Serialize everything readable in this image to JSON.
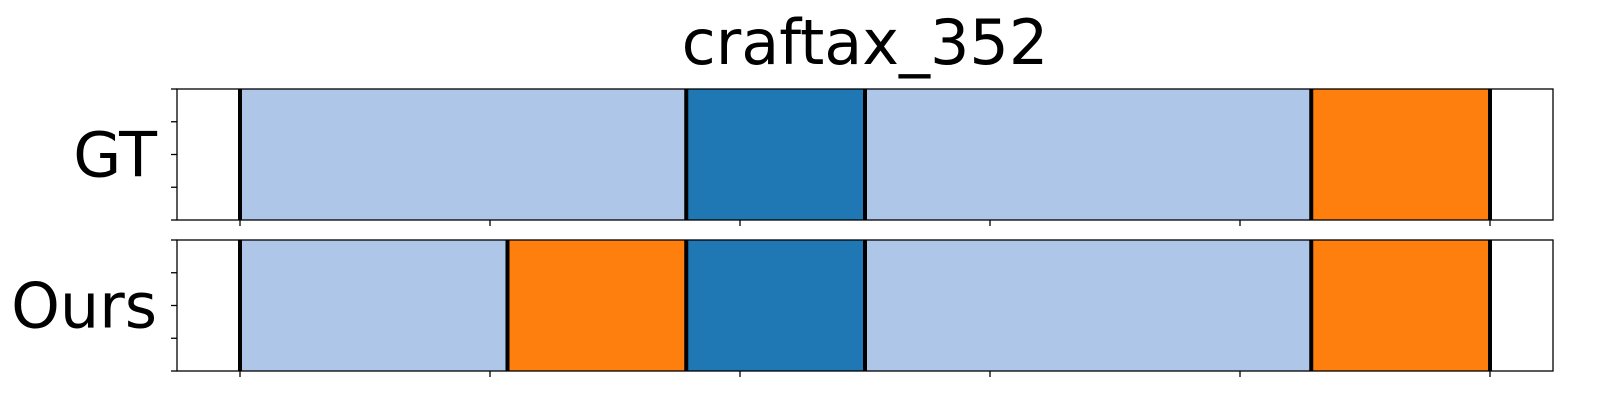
{
  "chart_data": {
    "type": "segmentation-timeline",
    "title": "craftax_352",
    "x_range": [
      0,
      1.0
    ],
    "x_ticks": [
      0.05,
      0.25,
      0.45,
      0.65,
      0.85,
      1.05
    ],
    "y_ticks_per_row": 5,
    "colors": {
      "light_blue": "#aec7e8",
      "dark_blue": "#1f77b4",
      "orange": "#ff7f0e",
      "background": "#ffffff",
      "boundary": "#000000"
    },
    "rows": [
      {
        "label": "GT",
        "segments": [
          {
            "start": 0.05,
            "end": 0.407,
            "color": "#aec7e8"
          },
          {
            "start": 0.407,
            "end": 0.55,
            "color": "#1f77b4"
          },
          {
            "start": 0.55,
            "end": 0.907,
            "color": "#aec7e8"
          },
          {
            "start": 0.907,
            "end": 1.05,
            "color": "#ff7f0e"
          }
        ],
        "boundaries": [
          0.05,
          0.407,
          0.55,
          0.907,
          1.05
        ]
      },
      {
        "label": "Ours",
        "segments": [
          {
            "start": 0.05,
            "end": 0.264,
            "color": "#aec7e8"
          },
          {
            "start": 0.264,
            "end": 0.407,
            "color": "#ff7f0e"
          },
          {
            "start": 0.407,
            "end": 0.55,
            "color": "#1f77b4"
          },
          {
            "start": 0.55,
            "end": 0.907,
            "color": "#aec7e8"
          },
          {
            "start": 0.907,
            "end": 1.05,
            "color": "#ff7f0e"
          }
        ],
        "boundaries": [
          0.05,
          0.264,
          0.407,
          0.55,
          0.907,
          1.05
        ]
      }
    ]
  }
}
